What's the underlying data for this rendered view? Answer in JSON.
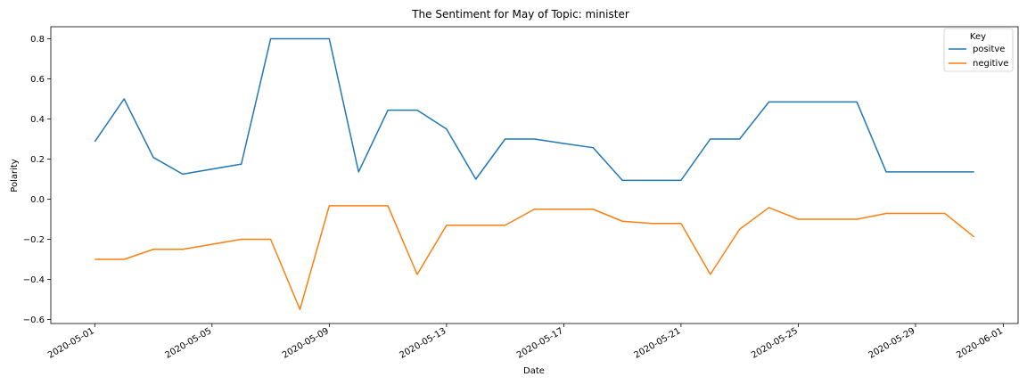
{
  "chart_data": {
    "type": "line",
    "title": "The Sentiment for May of Topic: minister",
    "xlabel": "Date",
    "ylabel": "Polarity",
    "x": [
      "2020-05-01",
      "2020-05-02",
      "2020-05-03",
      "2020-05-04",
      "2020-05-05",
      "2020-05-06",
      "2020-05-07",
      "2020-05-08",
      "2020-05-09",
      "2020-05-10",
      "2020-05-11",
      "2020-05-12",
      "2020-05-13",
      "2020-05-14",
      "2020-05-15",
      "2020-05-16",
      "2020-05-17",
      "2020-05-18",
      "2020-05-19",
      "2020-05-20",
      "2020-05-21",
      "2020-05-22",
      "2020-05-23",
      "2020-05-24",
      "2020-05-25",
      "2020-05-26",
      "2020-05-27",
      "2020-05-28",
      "2020-05-29",
      "2020-05-30",
      "2020-05-31"
    ],
    "series": [
      {
        "name": "positve",
        "color": "#1f77b4",
        "values": [
          0.287,
          0.5,
          0.208,
          0.125,
          0.15,
          0.175,
          0.8,
          0.8,
          0.8,
          0.136,
          0.444,
          0.444,
          0.35,
          0.1,
          0.3,
          0.3,
          0.278,
          0.257,
          0.094,
          0.094,
          0.094,
          0.3,
          0.3,
          0.485,
          0.485,
          0.485,
          0.485,
          0.136,
          0.136,
          0.136,
          0.136
        ]
      },
      {
        "name": "negitive",
        "color": "#ff7f0e",
        "values": [
          -0.3,
          -0.3,
          -0.25,
          -0.25,
          -0.225,
          -0.2,
          -0.2,
          -0.55,
          -0.033,
          -0.033,
          -0.033,
          -0.375,
          -0.13,
          -0.13,
          -0.13,
          -0.05,
          -0.05,
          -0.05,
          -0.11,
          -0.121,
          -0.121,
          -0.375,
          -0.15,
          -0.042,
          -0.1,
          -0.1,
          -0.1,
          -0.071,
          -0.071,
          -0.071,
          -0.188
        ]
      }
    ],
    "ylim": [
      -0.62,
      0.86
    ],
    "yticks": [
      -0.6,
      -0.4,
      -0.2,
      0.0,
      0.2,
      0.4,
      0.6,
      0.8
    ],
    "ytick_labels": [
      "−0.6",
      "−0.4",
      "−0.2",
      "0.0",
      "0.2",
      "0.4",
      "0.6",
      "0.8"
    ],
    "xlim": [
      "2020-04-29.5",
      "2020-06-01.5"
    ],
    "xticks": [
      "2020-05-01",
      "2020-05-05",
      "2020-05-09",
      "2020-05-13",
      "2020-05-17",
      "2020-05-21",
      "2020-05-25",
      "2020-05-29",
      "2020-06-01"
    ],
    "legend": {
      "title": "Key",
      "placement": "top-right"
    },
    "grid": false
  }
}
